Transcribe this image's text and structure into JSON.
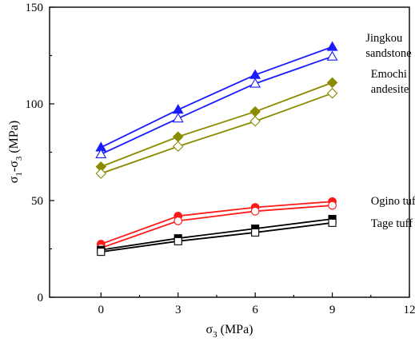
{
  "chart_data": {
    "type": "line",
    "xlabel_main": "σ",
    "xlabel_sub": "3",
    "xlabel_unit": " (MPa)",
    "ylabel_main": "σ",
    "ylabel_sub1": "1",
    "ylabel_mid": "-σ",
    "ylabel_sub2": "3",
    "ylabel_unit": " (MPa)",
    "xlim": [
      -2,
      12
    ],
    "ylim": [
      0,
      150
    ],
    "xticks": [
      0,
      3,
      6,
      9,
      12
    ],
    "yticks": [
      0,
      50,
      100,
      150
    ],
    "x": [
      0,
      3,
      6,
      9
    ],
    "series": [
      {
        "rock": "jingkou",
        "color": "#1a1aff",
        "marker": "triangle",
        "filled": true,
        "values": [
          77.5,
          97,
          115,
          129.5
        ]
      },
      {
        "rock": "jingkou",
        "color": "#1a1aff",
        "marker": "triangle",
        "filled": false,
        "values": [
          74,
          92.5,
          110.5,
          124.5
        ]
      },
      {
        "rock": "emochi",
        "color": "#8b8b00",
        "marker": "diamond",
        "filled": true,
        "values": [
          67.5,
          83,
          96,
          111
        ]
      },
      {
        "rock": "emochi",
        "color": "#8b8b00",
        "marker": "diamond",
        "filled": false,
        "values": [
          64,
          78,
          91,
          105.5
        ]
      },
      {
        "rock": "ogino",
        "color": "#ff1a1a",
        "marker": "circle",
        "filled": true,
        "values": [
          27.5,
          42,
          46.5,
          49.5
        ]
      },
      {
        "rock": "ogino",
        "color": "#ff1a1a",
        "marker": "circle",
        "filled": false,
        "values": [
          25.5,
          39.5,
          44.5,
          47.5
        ]
      },
      {
        "rock": "tage",
        "color": "#000000",
        "marker": "square",
        "filled": true,
        "values": [
          24.5,
          30.5,
          35.5,
          40.5
        ]
      },
      {
        "rock": "tage",
        "color": "#000000",
        "marker": "square",
        "filled": false,
        "values": [
          23.5,
          29,
          33.5,
          38.5
        ]
      }
    ],
    "annotations": [
      {
        "lines": [
          "Jingkou",
          "sandstone"
        ],
        "x": 10.3,
        "y": 130.5
      },
      {
        "lines": [
          "Emochi",
          "andesite"
        ],
        "x": 10.5,
        "y": 112
      },
      {
        "lines": [
          "Ogino tuff"
        ],
        "x": 10.5,
        "y": 50
      },
      {
        "lines": [
          "Tage tuff"
        ],
        "x": 10.5,
        "y": 38.5
      }
    ]
  }
}
